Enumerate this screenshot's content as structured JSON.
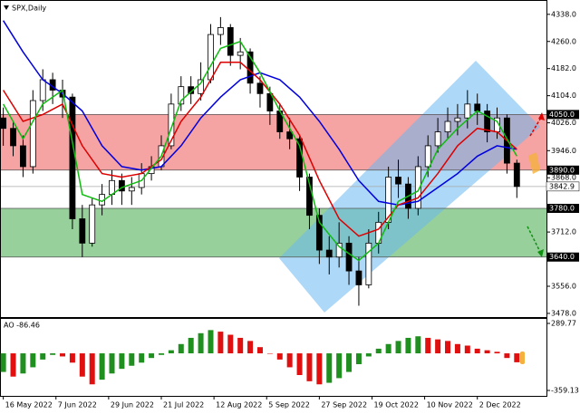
{
  "chart_data": {
    "type": "candlestick",
    "title": "SPX,Daily",
    "x": [
      0,
      3,
      6,
      9,
      12,
      15,
      18,
      21,
      24,
      27,
      30,
      33,
      36,
      39,
      42,
      45,
      48,
      51,
      54,
      57,
      60,
      63,
      66,
      69,
      72,
      75,
      78,
      81,
      84,
      87,
      90,
      93,
      96,
      99,
      102,
      105,
      108,
      111,
      114,
      117,
      120,
      123,
      126,
      129,
      132,
      135,
      138,
      141,
      144,
      147,
      150,
      153,
      156
    ],
    "open": [
      4040,
      4010,
      3960,
      3900,
      4090,
      4150,
      4120,
      4100,
      3750,
      3680,
      3790,
      3820,
      3860,
      3830,
      3840,
      3880,
      3900,
      3960,
      4080,
      4130,
      4110,
      4150,
      4280,
      4300,
      4220,
      4230,
      4140,
      4110,
      4060,
      4000,
      3980,
      3870,
      3760,
      3660,
      3640,
      3680,
      3600,
      3560,
      3680,
      3740,
      3870,
      3850,
      3780,
      3900,
      3960,
      4000,
      4030,
      4040,
      4080,
      4060,
      4000,
      4040,
      3910
    ],
    "high": [
      4070,
      4030,
      3990,
      4120,
      4180,
      4170,
      4150,
      4110,
      3790,
      3810,
      3850,
      3890,
      3880,
      3870,
      3910,
      3930,
      3990,
      4110,
      4160,
      4160,
      4200,
      4310,
      4330,
      4310,
      4270,
      4240,
      4160,
      4130,
      4080,
      4040,
      3990,
      3880,
      3780,
      3700,
      3740,
      3700,
      3640,
      3720,
      3770,
      3900,
      3920,
      3870,
      3930,
      3990,
      4040,
      4070,
      4080,
      4120,
      4110,
      4080,
      4070,
      4050,
      3920
    ],
    "low": [
      3960,
      3930,
      3870,
      3880,
      4060,
      4080,
      4040,
      3720,
      3640,
      3670,
      3760,
      3790,
      3790,
      3790,
      3820,
      3860,
      3890,
      3950,
      4060,
      4080,
      4090,
      4140,
      4250,
      4190,
      4180,
      4110,
      4070,
      4020,
      3980,
      3950,
      3830,
      3720,
      3620,
      3590,
      3610,
      3560,
      3500,
      3550,
      3650,
      3720,
      3810,
      3750,
      3760,
      3870,
      3940,
      3980,
      3990,
      4010,
      4020,
      3970,
      3980,
      3880,
      3810
    ],
    "close": [
      4010,
      3960,
      3900,
      4090,
      4150,
      4120,
      4100,
      3750,
      3680,
      3790,
      3820,
      3860,
      3830,
      3840,
      3880,
      3900,
      3960,
      4080,
      4130,
      4110,
      4150,
      4280,
      4300,
      4220,
      4230,
      4140,
      4110,
      4060,
      4000,
      3980,
      3870,
      3760,
      3660,
      3640,
      3680,
      3600,
      3560,
      3680,
      3740,
      3870,
      3850,
      3780,
      3900,
      3960,
      4000,
      4030,
      4040,
      4080,
      4060,
      4000,
      4040,
      3910,
      3842.9
    ],
    "up_color": "#ffffff",
    "down_color": "#000000",
    "xlim": [
      -1,
      165
    ],
    "xticks": [
      {
        "value": 0,
        "label": "16 May 2022"
      },
      {
        "value": 16,
        "label": "7 Jun 2022"
      },
      {
        "value": 32,
        "label": "29 Jun 2022"
      },
      {
        "value": 48,
        "label": "21 Jul 2022"
      },
      {
        "value": 64,
        "label": "12 Aug 2022"
      },
      {
        "value": 80,
        "label": "5 Sep 2022"
      },
      {
        "value": 96,
        "label": "27 Sep 2022"
      },
      {
        "value": 112,
        "label": "19 Oct 2022"
      },
      {
        "value": 128,
        "label": "10 Nov 2022"
      },
      {
        "value": 144,
        "label": "2 Dec 2022"
      }
    ],
    "ylim": [
      3470,
      4374
    ],
    "yticks": [
      {
        "value": 4338,
        "label": "4338.0"
      },
      {
        "value": 4260,
        "label": "4260.0"
      },
      {
        "value": 4182,
        "label": "4182.0"
      },
      {
        "value": 4104,
        "label": "4104.0"
      },
      {
        "value": 4026,
        "label": "4026.0"
      },
      {
        "value": 3946,
        "label": "3946.0"
      },
      {
        "value": 3868,
        "label": "3868.0"
      },
      {
        "value": 3712,
        "label": "3712.0"
      },
      {
        "value": 3556,
        "label": "3556.0"
      },
      {
        "value": 3478,
        "label": "3478.0"
      }
    ],
    "zones": [
      {
        "from": 3890,
        "to": 4050,
        "color": "#f5a3a3"
      },
      {
        "from": 3640,
        "to": 3780,
        "color": "#97d09b"
      }
    ],
    "levels": [
      {
        "value": 4050,
        "label": "4050.0"
      },
      {
        "value": 3890,
        "label": "3890.0"
      },
      {
        "value": 3780,
        "label": "3780.0"
      },
      {
        "value": 3640,
        "label": "3640.0"
      }
    ],
    "current_price": {
      "value": 3842.9,
      "label": "3842.9"
    },
    "moving_averages": {
      "x": [
        0,
        6,
        12,
        18,
        24,
        30,
        36,
        42,
        48,
        54,
        60,
        66,
        72,
        78,
        84,
        90,
        96,
        102,
        108,
        114,
        120,
        126,
        132,
        138,
        144,
        150,
        156
      ],
      "series": [
        {
          "color": "#0000dd",
          "values": [
            4320,
            4230,
            4150,
            4110,
            4060,
            3960,
            3900,
            3890,
            3900,
            3960,
            4040,
            4100,
            4150,
            4170,
            4150,
            4100,
            4030,
            3950,
            3860,
            3800,
            3790,
            3800,
            3840,
            3880,
            3930,
            3960,
            3950
          ]
        },
        {
          "color": "#dd0000",
          "values": [
            4120,
            4030,
            4050,
            4080,
            3960,
            3880,
            3870,
            3880,
            3920,
            4030,
            4100,
            4200,
            4200,
            4150,
            4080,
            3990,
            3860,
            3750,
            3700,
            3720,
            3790,
            3810,
            3880,
            3960,
            4010,
            4000,
            3950
          ]
        },
        {
          "color": "#11bb11",
          "values": [
            4080,
            3980,
            4080,
            4120,
            3820,
            3800,
            3840,
            3860,
            3930,
            4090,
            4140,
            4240,
            4260,
            4170,
            4060,
            3960,
            3740,
            3670,
            3630,
            3680,
            3800,
            3830,
            3950,
            4010,
            4060,
            4030,
            3930
          ]
        }
      ]
    },
    "indicator": {
      "type": "bar",
      "title": "AO -86.46",
      "values": [
        -180,
        -225,
        -195,
        -135,
        -60,
        -15,
        -30,
        -90,
        -225,
        -300,
        -255,
        -195,
        -150,
        -120,
        -90,
        -45,
        -15,
        30,
        90,
        150,
        195,
        225,
        210,
        180,
        150,
        120,
        60,
        0,
        -60,
        -135,
        -210,
        -270,
        -300,
        -285,
        -240,
        -180,
        -105,
        -30,
        45,
        90,
        120,
        150,
        165,
        150,
        135,
        120,
        90,
        75,
        45,
        30,
        15,
        -45,
        -86.46
      ],
      "ylim": [
        -359.13,
        289.77
      ],
      "yticks": [
        {
          "value": 289.77,
          "label": "289.77"
        },
        {
          "value": -359.13,
          "label": "-359.13"
        }
      ],
      "up_color": "#1f8f1f",
      "down_color": "#e01010"
    }
  }
}
